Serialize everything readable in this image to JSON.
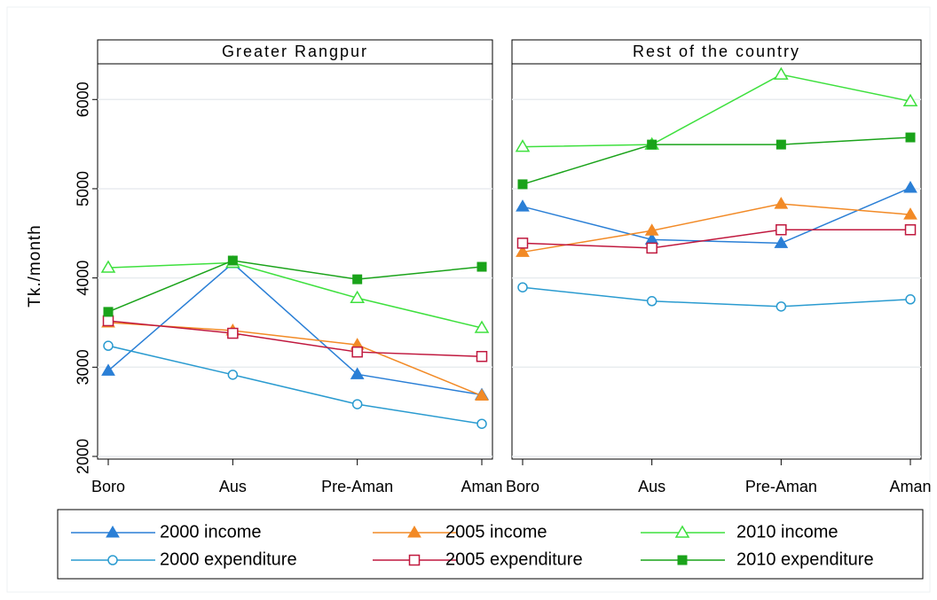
{
  "chart_data": {
    "type": "line",
    "y_label": "Tk./month",
    "facets": [
      "Greater Rangpur",
      "Rest of the country"
    ],
    "categories": [
      "Boro",
      "Aus",
      "Pre-Aman",
      "Aman"
    ],
    "ylim": [
      1970,
      6400
    ],
    "yticks": [
      2000,
      3000,
      4000,
      5000,
      6000
    ],
    "grid": true,
    "series": [
      {
        "name": "2000 income",
        "color": "#2a7fd6",
        "marker": "triangle-filled",
        "values": [
          [
            2960,
            4165,
            2920,
            2690
          ],
          [
            4800,
            4430,
            4390,
            5010
          ]
        ]
      },
      {
        "name": "2005 income",
        "color": "#f28a26",
        "marker": "triangle-filled",
        "values": [
          [
            3500,
            3410,
            3250,
            2680
          ],
          [
            4290,
            4530,
            4830,
            4710
          ]
        ]
      },
      {
        "name": "2010 income",
        "color": "#3ee03e",
        "marker": "triangle-hollow",
        "values": [
          [
            4115,
            4170,
            3775,
            3440
          ],
          [
            5470,
            5495,
            6280,
            5980
          ]
        ]
      },
      {
        "name": "2000 expenditure",
        "color": "#2a9bd0",
        "marker": "circle-hollow",
        "values": [
          [
            3240,
            2915,
            2585,
            2365
          ],
          [
            3895,
            3740,
            3680,
            3760
          ]
        ]
      },
      {
        "name": "2005 expenditure",
        "color": "#c0183e",
        "marker": "square-hollow",
        "values": [
          [
            3520,
            3380,
            3170,
            3120
          ],
          [
            4390,
            4335,
            4540,
            4540
          ]
        ]
      },
      {
        "name": "2010 expenditure",
        "color": "#1aa31a",
        "marker": "square-filled",
        "values": [
          [
            3620,
            4195,
            3985,
            4125
          ],
          [
            5050,
            5495,
            5495,
            5575
          ]
        ]
      }
    ]
  }
}
